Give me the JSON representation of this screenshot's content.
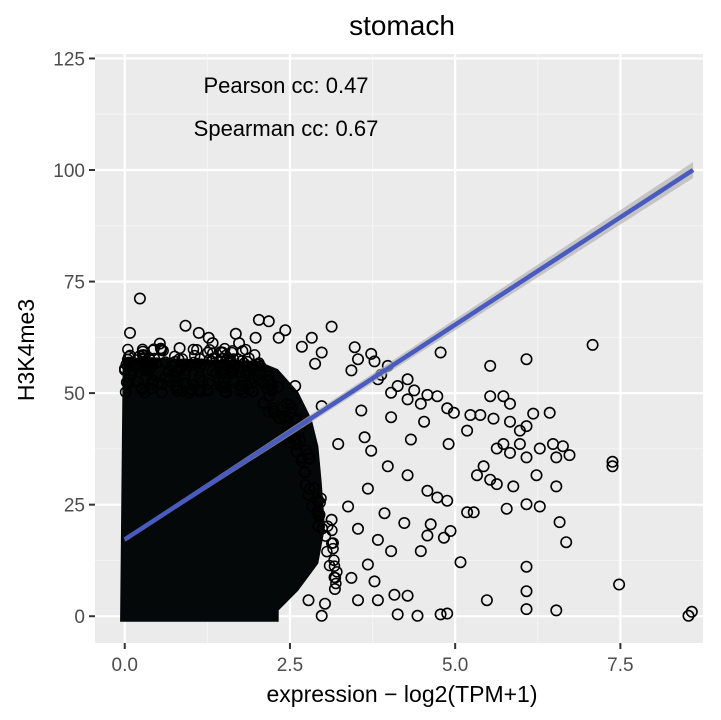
{
  "chart_data": {
    "type": "scatter",
    "title": "stomach",
    "xlabel": "expression − log2(TPM+1)",
    "ylabel": "H3K4me3",
    "xlim": [
      -0.45,
      8.75
    ],
    "ylim": [
      -6,
      126
    ],
    "x_ticks": [
      0.0,
      2.5,
      5.0,
      7.5
    ],
    "x_tick_labels": [
      "0.0",
      "2.5",
      "5.0",
      "7.5"
    ],
    "y_ticks": [
      0,
      25,
      50,
      75,
      100,
      125
    ],
    "y_tick_labels": [
      "0",
      "25",
      "50",
      "75",
      "100",
      "125"
    ],
    "grid": true,
    "annotations": [
      "Pearson cc: 0.47",
      "Spearman cc: 0.67"
    ],
    "fit_line": {
      "x": [
        0.0,
        8.6
      ],
      "y": [
        17.2,
        100.0
      ]
    },
    "dense_region": {
      "x": [
        0.0,
        3.5
      ],
      "y": [
        0,
        57
      ]
    },
    "points": [
      [
        0.08,
        63.5
      ],
      [
        0.23,
        71.2
      ],
      [
        0.23,
        58.3
      ],
      [
        0.53,
        61.1
      ],
      [
        0.92,
        65.1
      ],
      [
        0.83,
        60.1
      ],
      [
        1.12,
        63.5
      ],
      [
        1.27,
        62.4
      ],
      [
        1.33,
        61.2
      ],
      [
        1.68,
        63.3
      ],
      [
        1.73,
        61.2
      ],
      [
        1.98,
        62.4
      ],
      [
        2.03,
        66.4
      ],
      [
        2.18,
        66.1
      ],
      [
        2.33,
        62.4
      ],
      [
        2.43,
        64.1
      ],
      [
        2.68,
        60.4
      ],
      [
        2.83,
        62.4
      ],
      [
        2.98,
        59.1
      ],
      [
        3.13,
        64.9
      ],
      [
        3.48,
        60.3
      ],
      [
        3.73,
        58.8
      ],
      [
        3.53,
        57.6
      ],
      [
        3.43,
        55.1
      ],
      [
        3.78,
        57.1
      ],
      [
        3.98,
        56.1
      ],
      [
        3.88,
        54.1
      ],
      [
        4.28,
        53.1
      ],
      [
        3.83,
        53.1
      ],
      [
        4.13,
        51.6
      ],
      [
        4.03,
        50.1
      ],
      [
        4.38,
        50.6
      ],
      [
        4.28,
        48.6
      ],
      [
        4.58,
        49.6
      ],
      [
        4.73,
        49.3
      ],
      [
        4.48,
        47.6
      ],
      [
        4.88,
        46.6
      ],
      [
        4.98,
        45.6
      ],
      [
        5.23,
        45.1
      ],
      [
        5.38,
        45.1
      ],
      [
        5.53,
        49.3
      ],
      [
        5.73,
        49.3
      ],
      [
        5.83,
        47.6
      ],
      [
        5.58,
        44.3
      ],
      [
        5.83,
        43.6
      ],
      [
        5.98,
        41.6
      ],
      [
        6.08,
        42.6
      ],
      [
        6.43,
        45.6
      ],
      [
        6.18,
        45.4
      ],
      [
        4.78,
        59.1
      ],
      [
        5.53,
        56.1
      ],
      [
        6.08,
        57.6
      ],
      [
        7.08,
        60.8
      ],
      [
        6.48,
        38.6
      ],
      [
        6.63,
        38.1
      ],
      [
        6.73,
        36.1
      ],
      [
        6.53,
        35.6
      ],
      [
        6.28,
        37.6
      ],
      [
        6.08,
        35.6
      ],
      [
        5.83,
        36.6
      ],
      [
        5.63,
        37.6
      ],
      [
        5.43,
        33.6
      ],
      [
        5.33,
        31.6
      ],
      [
        5.53,
        30.6
      ],
      [
        5.63,
        29.6
      ],
      [
        5.88,
        29.1
      ],
      [
        6.23,
        31.6
      ],
      [
        6.53,
        29.1
      ],
      [
        6.08,
        25.1
      ],
      [
        6.28,
        24.6
      ],
      [
        5.78,
        24.1
      ],
      [
        5.28,
        23.3
      ],
      [
        5.18,
        23.3
      ],
      [
        4.88,
        25.9
      ],
      [
        4.58,
        28.1
      ],
      [
        4.28,
        31.6
      ],
      [
        3.98,
        33.6
      ],
      [
        3.68,
        28.6
      ],
      [
        3.38,
        24.6
      ],
      [
        3.13,
        21.6
      ],
      [
        3.53,
        19.6
      ],
      [
        3.83,
        17.1
      ],
      [
        4.03,
        14.6
      ],
      [
        3.68,
        11.6
      ],
      [
        3.43,
        8.6
      ],
      [
        3.18,
        6.1
      ],
      [
        2.78,
        3.6
      ],
      [
        3.78,
        7.8
      ],
      [
        3.83,
        3.6
      ],
      [
        3.53,
        3.6
      ],
      [
        4.58,
        18.1
      ],
      [
        4.93,
        19.1
      ],
      [
        4.48,
        14.6
      ],
      [
        5.08,
        12.1
      ],
      [
        6.08,
        11.1
      ],
      [
        6.68,
        16.6
      ],
      [
        6.58,
        21.1
      ],
      [
        7.48,
        7.1
      ],
      [
        7.38,
        33.6
      ],
      [
        7.38,
        34.6
      ],
      [
        6.08,
        5.6
      ],
      [
        6.08,
        1.6
      ],
      [
        6.53,
        1.3
      ],
      [
        5.48,
        3.6
      ],
      [
        4.88,
        0.6
      ],
      [
        4.78,
        0.4
      ],
      [
        4.43,
        0.1
      ],
      [
        4.13,
        0.4
      ],
      [
        4.08,
        4.8
      ],
      [
        4.28,
        4.6
      ],
      [
        3.03,
        2.8
      ],
      [
        2.98,
        0.1
      ],
      [
        3.93,
        23.1
      ],
      [
        4.23,
        20.9
      ],
      [
        4.63,
        20.6
      ],
      [
        4.83,
        17.6
      ],
      [
        3.23,
        38.6
      ],
      [
        3.63,
        40.1
      ],
      [
        2.68,
        43.1
      ],
      [
        2.98,
        47.1
      ],
      [
        8.53,
        0.1
      ],
      [
        8.58,
        1.0
      ],
      [
        4.9,
        38.6
      ],
      [
        5.18,
        41.6
      ],
      [
        4.53,
        43.6
      ],
      [
        4.33,
        39.6
      ],
      [
        4.03,
        44.6
      ],
      [
        3.73,
        37.1
      ],
      [
        5.73,
        38.6
      ],
      [
        5.98,
        38.6
      ],
      [
        4.73,
        26.6
      ],
      [
        3.58,
        46.1
      ],
      [
        2.58,
        51.6
      ],
      [
        2.88,
        56.6
      ],
      [
        1.58,
        57.1
      ],
      [
        0.43,
        59.6
      ]
    ]
  }
}
